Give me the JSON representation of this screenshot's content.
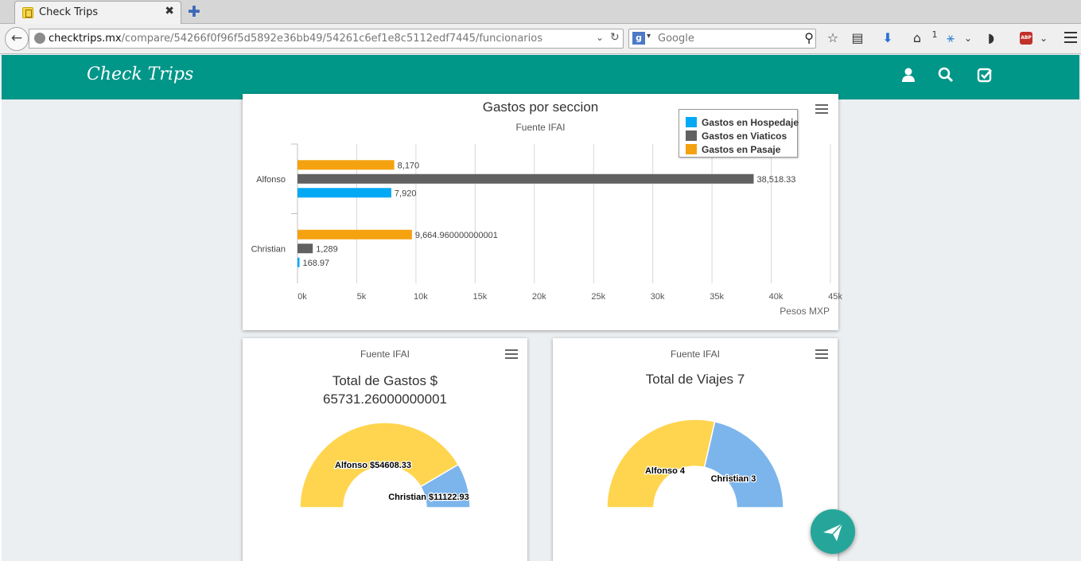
{
  "browser": {
    "tab_title": "Check Trips",
    "tab_close": "✖",
    "new_tab": "✚",
    "url_host": "checktrips.mx",
    "url_path": "/compare/54266f0f96f5d5892e36bb49/54261c6ef1e8c5112edf7445/funcionarios",
    "search_placeholder": "Google",
    "search_engine_letter": "g",
    "badge_count": "1",
    "abp_label": "ABP"
  },
  "app": {
    "logo": "Check Trips"
  },
  "bar_card": {
    "title": "Gastos por seccion",
    "subtitle": "Fuente IFAI",
    "xlabel": "Pesos MXP"
  },
  "chart_data": [
    {
      "type": "bar",
      "orientation": "horizontal",
      "title": "Gastos por seccion",
      "subtitle": "Fuente IFAI",
      "xlabel": "Pesos MXP",
      "categories": [
        "Alfonso",
        "Christian"
      ],
      "series": [
        {
          "name": "Gastos en Pasaje",
          "color": "#F5A210",
          "values": [
            8170,
            9664.960000000001
          ],
          "labels": [
            "8,170",
            "9,664.960000000001"
          ]
        },
        {
          "name": "Gastos en Viaticos",
          "color": "#616161",
          "values": [
            38518.33,
            1289
          ],
          "labels": [
            "38,518.33",
            "1,289"
          ]
        },
        {
          "name": "Gastos en Hospedaje",
          "color": "#03A9F4",
          "values": [
            7920,
            168.97
          ],
          "labels": [
            "7,920",
            "168.97"
          ]
        }
      ],
      "legend_order": [
        "Gastos en Hospedaje",
        "Gastos en Viaticos",
        "Gastos en Pasaje"
      ],
      "xlim": [
        0,
        45000
      ],
      "ticks": [
        0,
        5000,
        10000,
        15000,
        20000,
        25000,
        30000,
        35000,
        40000,
        45000
      ],
      "tick_labels": [
        "0k",
        "5k",
        "10k",
        "15k",
        "20k",
        "25k",
        "30k",
        "35k",
        "40k",
        "45k"
      ],
      "grid": true,
      "legend_position": "top-right"
    },
    {
      "type": "pie",
      "variant": "semi-donut",
      "title": "Total de Gastos $ 65731.26000000001",
      "subtitle": "Fuente IFAI",
      "slices": [
        {
          "name": "Alfonso",
          "value": 54608.33,
          "label": "Alfonso $54608.33",
          "color": "#FFD54F"
        },
        {
          "name": "Christian",
          "value": 11122.93,
          "label": "Christian $11122.93",
          "color": "#7CB5EC"
        }
      ]
    },
    {
      "type": "pie",
      "variant": "semi-donut",
      "title": "Total de Viajes 7",
      "subtitle": "Fuente IFAI",
      "slices": [
        {
          "name": "Alfonso",
          "value": 4,
          "label": "Alfonso 4",
          "color": "#FFD54F"
        },
        {
          "name": "Christian",
          "value": 3,
          "label": "Christian 3",
          "color": "#7CB5EC"
        }
      ]
    }
  ],
  "gastos_card": {
    "subtitle": "Fuente IFAI",
    "title_line1": "Total de Gastos $",
    "title_line2": "65731.26000000001"
  },
  "viajes_card": {
    "subtitle": "Fuente IFAI",
    "title": "Total de Viajes 7"
  }
}
